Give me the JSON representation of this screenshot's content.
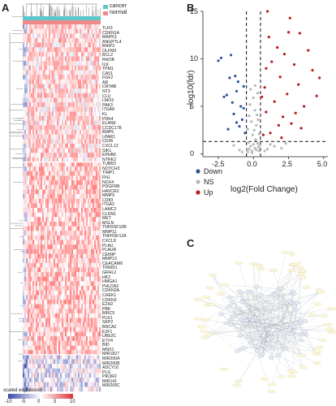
{
  "panels": {
    "a": "A",
    "b": "B",
    "c": "C"
  },
  "heatmap": {
    "annotation": [
      {
        "name": "cancer",
        "color": "#5bc8cc"
      },
      {
        "name": "normal",
        "color": "#f08a8a"
      }
    ],
    "colorbar": {
      "title": "scaled expression",
      "ticks": [
        "-10",
        "-5",
        "0",
        "5",
        "10"
      ],
      "min": -10,
      "max": 10
    },
    "genes": [
      "TLR3",
      "CDKN1A",
      "MAPK3",
      "ANGPTL4",
      "BNIP3",
      "OLFM3",
      "BCL2",
      "RHOB",
      "ILK",
      "TPM1",
      "CAV1",
      "FGF2",
      "AR",
      "CRYAB",
      "NT3",
      "CLU",
      "LMO3",
      "PAK3",
      "ITGA8",
      "KL",
      "PDK4",
      "ELANE",
      "CCDC178",
      "BMP6",
      "LPAR1",
      "CD36",
      "CXCL12",
      "SIK1",
      "EPHB6",
      "NTRK2",
      "TUBB3",
      "NOTCH3",
      "TIMP1",
      "FN1",
      "NOX4",
      "PDGFRB",
      "HAVCR2",
      "MMP9",
      "CD83",
      "ITGA2",
      "LAMC2",
      "CLDN1",
      "MET",
      "MSLN",
      "TNFRSF10B",
      "MMP11",
      "TNFRSF12A",
      "CXCL8",
      "PLAU",
      "PLAUR",
      "CEMIP",
      "MMP13",
      "CEACAM6",
      "TRIM31",
      "GRHL2",
      "HK2",
      "HMGA1",
      "PHLDA2",
      "CDKN2A",
      "CHEK1",
      "CDKN3",
      "EZH2",
      "PBK",
      "BIRC5",
      "PLK1",
      "SKP2",
      "BRCA2",
      "E2F1",
      "UBE2C",
      "ETV4",
      "BID",
      "MNX1",
      "MIR1827",
      "MIR200A",
      "MIR200B",
      "ADCY10",
      "PLG",
      "PIK3R2",
      "MIR141",
      "MIR200C"
    ]
  },
  "chart_data": {
    "type": "scatter",
    "xlabel": "log2(Fold Change)",
    "ylabel": "−log10(fdr)",
    "xlim": [
      -3.6,
      5.3
    ],
    "ylim": [
      -0.3,
      15
    ],
    "xticks": [
      -2.5,
      0,
      2.5,
      5
    ],
    "yticks": [
      0,
      5,
      10,
      15
    ],
    "xtick_labels": [
      "-2.5",
      "0.0",
      "2.5",
      "5.0"
    ],
    "ytick_labels": [
      "0",
      "5",
      "10",
      "15"
    ],
    "vlines": [
      -0.5,
      0.5
    ],
    "hline": 1.3,
    "grid": false,
    "legend_position": "bottom-left",
    "series": [
      {
        "name": "Down",
        "color": "#2f5597",
        "points": [
          [
            -2.5,
            9.8
          ],
          [
            -2.3,
            10.1
          ],
          [
            -1.6,
            10.4
          ],
          [
            -1.3,
            8.2
          ],
          [
            -1.1,
            7.6
          ],
          [
            -1.2,
            6.6
          ],
          [
            -1.9,
            6.2
          ],
          [
            -1.5,
            5.4
          ],
          [
            -0.9,
            5.0
          ],
          [
            -1.4,
            4.2
          ],
          [
            -0.8,
            3.6
          ],
          [
            -1.0,
            2.9
          ],
          [
            -1.8,
            2.6
          ],
          [
            -0.7,
            7.1
          ],
          [
            -1.7,
            8.0
          ],
          [
            -2.1,
            6.0
          ],
          [
            -0.6,
            2.2
          ],
          [
            -0.7,
            4.8
          ],
          [
            -1.2,
            3.3
          ]
        ]
      },
      {
        "name": "NS",
        "color": "#b8b8b8",
        "points": [
          [
            -0.4,
            0.2
          ],
          [
            -0.3,
            0.5
          ],
          [
            -0.2,
            0.8
          ],
          [
            -0.1,
            0.3
          ],
          [
            0.0,
            1.0
          ],
          [
            0.1,
            0.6
          ],
          [
            0.2,
            0.4
          ],
          [
            0.3,
            1.1
          ],
          [
            0.35,
            0.7
          ],
          [
            -0.35,
            1.2
          ],
          [
            0.15,
            1.5
          ],
          [
            -0.05,
            2.0
          ],
          [
            0.05,
            2.5
          ],
          [
            0.2,
            3.0
          ],
          [
            -0.15,
            3.4
          ],
          [
            0.25,
            4.1
          ],
          [
            0.1,
            4.6
          ],
          [
            -0.25,
            5.2
          ],
          [
            0.0,
            5.9
          ],
          [
            0.3,
            6.4
          ],
          [
            -0.1,
            0.1
          ],
          [
            0.4,
            0.3
          ],
          [
            -0.45,
            0.5
          ],
          [
            0.45,
            0.9
          ],
          [
            1.0,
            0.5
          ],
          [
            -1.0,
            0.4
          ],
          [
            1.5,
            0.8
          ],
          [
            -1.4,
            0.9
          ],
          [
            2.0,
            0.6
          ],
          [
            -0.8,
            0.2
          ],
          [
            0.8,
            0.3
          ],
          [
            1.2,
            1.0
          ],
          [
            0.12,
            7.2
          ],
          [
            -0.2,
            6.8
          ],
          [
            0.4,
            2.1
          ],
          [
            -0.4,
            2.6
          ],
          [
            0.33,
            3.6
          ],
          [
            -0.3,
            4.0
          ],
          [
            2.3,
            1.1
          ]
        ]
      },
      {
        "name": "Up",
        "color": "#b71c1c",
        "points": [
          [
            1.0,
            15.0
          ],
          [
            2.6,
            14.3
          ],
          [
            3.3,
            12.7
          ],
          [
            1.7,
            11.2
          ],
          [
            2.2,
            10.5
          ],
          [
            3.9,
            10.9
          ],
          [
            1.3,
            9.7
          ],
          [
            2.9,
            9.4
          ],
          [
            4.2,
            8.8
          ],
          [
            1.9,
            8.1
          ],
          [
            3.2,
            7.3
          ],
          [
            0.8,
            7.0
          ],
          [
            2.4,
            6.3
          ],
          [
            4.5,
            6.1
          ],
          [
            1.5,
            5.5
          ],
          [
            3.6,
            5.0
          ],
          [
            0.9,
            4.4
          ],
          [
            2.1,
            3.9
          ],
          [
            2.7,
            3.2
          ],
          [
            3.4,
            2.7
          ],
          [
            1.2,
            2.2
          ],
          [
            1.8,
            3.0
          ],
          [
            0.7,
            2.0
          ],
          [
            2.0,
            1.7
          ],
          [
            4.7,
            8.0
          ],
          [
            3.0,
            4.3
          ],
          [
            0.6,
            6.0
          ],
          [
            1.1,
            12.3
          ],
          [
            2.5,
            12.8
          ],
          [
            0.9,
            9.0
          ]
        ]
      }
    ]
  },
  "volcano_legend": {
    "title_items": [
      "Down",
      "NS",
      "Up"
    ]
  },
  "network": {
    "caption_nodes": []
  }
}
